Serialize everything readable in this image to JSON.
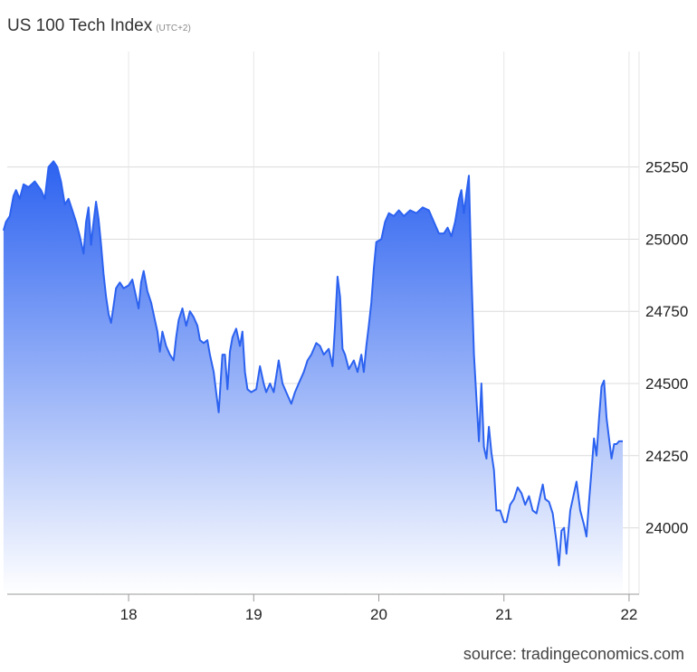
{
  "chart_data": {
    "type": "area",
    "title": "US 100 Tech Index",
    "subtitle": "(UTC+2)",
    "source": "source: tradingeconomics.com",
    "xlabel": "",
    "ylabel": "",
    "x_ticks": [
      "18",
      "19",
      "20",
      "21",
      "22"
    ],
    "y_ticks": [
      "24000",
      "24250",
      "24500",
      "24750",
      "25000",
      "25250"
    ],
    "x_range": [
      17.03,
      22.08
    ],
    "ylim": [
      23770,
      25650
    ],
    "grid": true,
    "colors": {
      "line": "#2c62f0",
      "fill_top": "#2c62f0",
      "fill_bottom": "#ffffff"
    },
    "series": [
      {
        "name": "",
        "points": [
          [
            17.0,
            25030
          ],
          [
            17.02,
            25060
          ],
          [
            17.05,
            25080
          ],
          [
            17.08,
            25150
          ],
          [
            17.1,
            25170
          ],
          [
            17.13,
            25140
          ],
          [
            17.16,
            25190
          ],
          [
            17.2,
            25180
          ],
          [
            17.25,
            25200
          ],
          [
            17.3,
            25170
          ],
          [
            17.33,
            25140
          ],
          [
            17.36,
            25250
          ],
          [
            17.4,
            25270
          ],
          [
            17.43,
            25250
          ],
          [
            17.46,
            25200
          ],
          [
            17.49,
            25120
          ],
          [
            17.52,
            25140
          ],
          [
            17.55,
            25100
          ],
          [
            17.58,
            25060
          ],
          [
            17.61,
            25010
          ],
          [
            17.64,
            24950
          ],
          [
            17.66,
            25060
          ],
          [
            17.68,
            25110
          ],
          [
            17.7,
            24980
          ],
          [
            17.72,
            25060
          ],
          [
            17.74,
            25130
          ],
          [
            17.76,
            25070
          ],
          [
            17.78,
            24980
          ],
          [
            17.8,
            24880
          ],
          [
            17.82,
            24800
          ],
          [
            17.84,
            24740
          ],
          [
            17.86,
            24710
          ],
          [
            17.88,
            24770
          ],
          [
            17.9,
            24830
          ],
          [
            17.93,
            24850
          ],
          [
            17.96,
            24830
          ],
          [
            18.0,
            24840
          ],
          [
            18.03,
            24860
          ],
          [
            18.06,
            24800
          ],
          [
            18.08,
            24760
          ],
          [
            18.1,
            24850
          ],
          [
            18.12,
            24890
          ],
          [
            18.15,
            24820
          ],
          [
            18.18,
            24780
          ],
          [
            18.21,
            24720
          ],
          [
            18.23,
            24680
          ],
          [
            18.25,
            24610
          ],
          [
            18.27,
            24680
          ],
          [
            18.3,
            24630
          ],
          [
            18.33,
            24600
          ],
          [
            18.36,
            24580
          ],
          [
            18.38,
            24660
          ],
          [
            18.4,
            24720
          ],
          [
            18.43,
            24760
          ],
          [
            18.46,
            24700
          ],
          [
            18.49,
            24750
          ],
          [
            18.52,
            24730
          ],
          [
            18.55,
            24700
          ],
          [
            18.57,
            24650
          ],
          [
            18.6,
            24640
          ],
          [
            18.63,
            24650
          ],
          [
            18.65,
            24600
          ],
          [
            18.68,
            24540
          ],
          [
            18.7,
            24470
          ],
          [
            18.72,
            24400
          ],
          [
            18.75,
            24600
          ],
          [
            18.77,
            24600
          ],
          [
            18.79,
            24480
          ],
          [
            18.81,
            24610
          ],
          [
            18.83,
            24660
          ],
          [
            18.86,
            24690
          ],
          [
            18.89,
            24630
          ],
          [
            18.91,
            24680
          ],
          [
            18.93,
            24540
          ],
          [
            18.95,
            24480
          ],
          [
            18.98,
            24470
          ],
          [
            19.02,
            24480
          ],
          [
            19.05,
            24560
          ],
          [
            19.08,
            24500
          ],
          [
            19.1,
            24470
          ],
          [
            19.13,
            24500
          ],
          [
            19.16,
            24470
          ],
          [
            19.2,
            24580
          ],
          [
            19.23,
            24500
          ],
          [
            19.26,
            24470
          ],
          [
            19.3,
            24430
          ],
          [
            19.33,
            24470
          ],
          [
            19.36,
            24500
          ],
          [
            19.4,
            24540
          ],
          [
            19.43,
            24580
          ],
          [
            19.46,
            24600
          ],
          [
            19.5,
            24640
          ],
          [
            19.53,
            24630
          ],
          [
            19.56,
            24600
          ],
          [
            19.6,
            24620
          ],
          [
            19.63,
            24560
          ],
          [
            19.65,
            24700
          ],
          [
            19.67,
            24870
          ],
          [
            19.69,
            24800
          ],
          [
            19.71,
            24620
          ],
          [
            19.73,
            24600
          ],
          [
            19.76,
            24550
          ],
          [
            19.8,
            24580
          ],
          [
            19.83,
            24540
          ],
          [
            19.86,
            24600
          ],
          [
            19.88,
            24540
          ],
          [
            19.9,
            24630
          ],
          [
            19.92,
            24700
          ],
          [
            19.94,
            24780
          ],
          [
            19.96,
            24900
          ],
          [
            19.98,
            24990
          ],
          [
            20.02,
            25000
          ],
          [
            20.05,
            25060
          ],
          [
            20.08,
            25090
          ],
          [
            20.12,
            25080
          ],
          [
            20.16,
            25100
          ],
          [
            20.2,
            25080
          ],
          [
            20.25,
            25100
          ],
          [
            20.3,
            25090
          ],
          [
            20.35,
            25110
          ],
          [
            20.4,
            25100
          ],
          [
            20.44,
            25060
          ],
          [
            20.48,
            25020
          ],
          [
            20.52,
            25020
          ],
          [
            20.55,
            25040
          ],
          [
            20.58,
            25010
          ],
          [
            20.61,
            25060
          ],
          [
            20.64,
            25140
          ],
          [
            20.66,
            25170
          ],
          [
            20.68,
            25090
          ],
          [
            20.7,
            25160
          ],
          [
            20.72,
            25220
          ],
          [
            20.74,
            24880
          ],
          [
            20.76,
            24600
          ],
          [
            20.78,
            24450
          ],
          [
            20.8,
            24300
          ],
          [
            20.82,
            24500
          ],
          [
            20.84,
            24280
          ],
          [
            20.86,
            24240
          ],
          [
            20.88,
            24350
          ],
          [
            20.9,
            24260
          ],
          [
            20.92,
            24200
          ],
          [
            20.94,
            24060
          ],
          [
            20.97,
            24060
          ],
          [
            21.0,
            24020
          ],
          [
            21.02,
            24020
          ],
          [
            21.05,
            24080
          ],
          [
            21.08,
            24100
          ],
          [
            21.11,
            24140
          ],
          [
            21.14,
            24120
          ],
          [
            21.17,
            24080
          ],
          [
            21.2,
            24110
          ],
          [
            21.23,
            24060
          ],
          [
            21.26,
            24050
          ],
          [
            21.29,
            24110
          ],
          [
            21.31,
            24150
          ],
          [
            21.33,
            24100
          ],
          [
            21.36,
            24090
          ],
          [
            21.39,
            24050
          ],
          [
            21.42,
            23950
          ],
          [
            21.44,
            23870
          ],
          [
            21.46,
            23990
          ],
          [
            21.48,
            24000
          ],
          [
            21.5,
            23910
          ],
          [
            21.53,
            24060
          ],
          [
            21.56,
            24120
          ],
          [
            21.58,
            24160
          ],
          [
            21.61,
            24060
          ],
          [
            21.64,
            24010
          ],
          [
            21.66,
            23970
          ],
          [
            21.68,
            24090
          ],
          [
            21.7,
            24200
          ],
          [
            21.72,
            24310
          ],
          [
            21.74,
            24250
          ],
          [
            21.76,
            24380
          ],
          [
            21.78,
            24490
          ],
          [
            21.8,
            24510
          ],
          [
            21.82,
            24380
          ],
          [
            21.84,
            24310
          ],
          [
            21.86,
            24240
          ],
          [
            21.88,
            24290
          ],
          [
            21.9,
            24290
          ],
          [
            21.92,
            24300
          ],
          [
            21.95,
            24300
          ]
        ]
      }
    ]
  }
}
